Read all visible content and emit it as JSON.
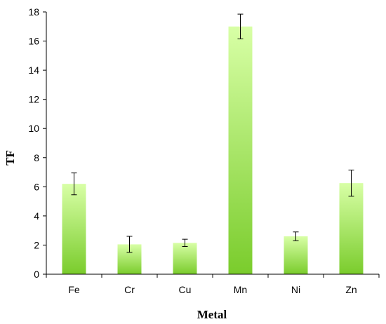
{
  "chart_data": {
    "type": "bar",
    "categories": [
      "Fe",
      "Cr",
      "Cu",
      "Mn",
      "Ni",
      "Zn"
    ],
    "values": [
      6.2,
      2.05,
      2.15,
      17.0,
      2.6,
      6.25
    ],
    "errors": [
      0.75,
      0.55,
      0.25,
      0.85,
      0.3,
      0.9
    ],
    "xlabel": "Metal",
    "ylabel": "TF",
    "ylim": [
      0,
      18
    ],
    "yticks": [
      0,
      2,
      4,
      6,
      8,
      10,
      12,
      14,
      16,
      18
    ],
    "grid": false,
    "legend": "none",
    "colors": {
      "bar_light": "#d8ffa6",
      "bar_dark": "#7acc2c"
    }
  }
}
